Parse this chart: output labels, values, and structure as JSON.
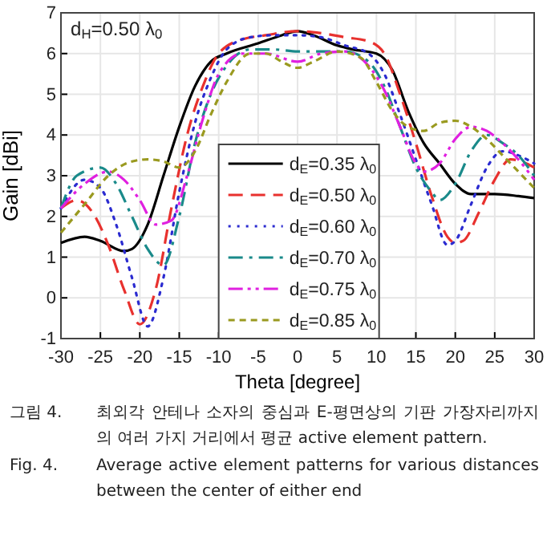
{
  "chart_data": {
    "type": "line",
    "xlabel": "Theta [degree]",
    "ylabel": "Gain [dBi]",
    "xlim": [
      -30,
      30
    ],
    "xticks": [
      -30,
      -25,
      -20,
      -15,
      -10,
      -5,
      0,
      5,
      10,
      15,
      20,
      25,
      30
    ],
    "ylim": [
      -1,
      7
    ],
    "yticks": [
      -1,
      0,
      1,
      2,
      3,
      4,
      5,
      6,
      7
    ],
    "grid": true,
    "legend": "bottom",
    "annotations": [
      {
        "text": "d$_{H}$=0.50 λ$_{0}$"
      },
      "그림 4. 최외각 안테나 소자의 중심과 E-평면상의 기판 가장자리까지의 여러 가지 거리에서 평균 active element pattern.",
      "Fig. 4. Average active element patterns for various distances between the center of either end"
    ],
    "series": [
      {
        "name": "d$_{E}$=0.35 λ$_{0}$",
        "color": "#000000",
        "line_style": "solid",
        "x": [
          -30,
          -27,
          -25,
          -22,
          -21,
          -19,
          -17,
          -15,
          -13,
          -11,
          -9,
          -5,
          -2,
          0,
          2,
          5,
          7,
          10,
          12,
          14,
          16,
          18,
          20,
          22,
          25,
          28,
          30
        ],
        "values": [
          1.35,
          1.5,
          1.4,
          1.15,
          1.2,
          1.8,
          3.0,
          4.2,
          5.2,
          5.8,
          6.0,
          6.25,
          6.45,
          6.55,
          6.45,
          6.2,
          6.1,
          6.0,
          5.6,
          4.6,
          3.8,
          3.3,
          2.8,
          2.55,
          2.55,
          2.5,
          2.45
        ]
      },
      {
        "name": "d$_{E}$=0.50 λ$_{0}$",
        "color": "#e8312e",
        "line_style": "dashed",
        "x": [
          -30,
          -28,
          -26,
          -24,
          -22,
          -20,
          -18,
          -16,
          -14,
          -12,
          -10,
          -7,
          -4,
          0,
          3,
          6,
          9,
          11,
          13,
          15,
          17,
          19,
          20,
          21,
          23,
          25,
          27,
          29,
          30
        ],
        "values": [
          2.2,
          2.4,
          2.1,
          1.3,
          0.2,
          -0.65,
          0.2,
          2.2,
          4.0,
          5.2,
          6.0,
          6.35,
          6.45,
          6.55,
          6.5,
          6.4,
          6.3,
          6.0,
          5.0,
          3.8,
          2.5,
          1.5,
          1.35,
          1.4,
          2.1,
          2.9,
          3.4,
          3.3,
          3.2
        ]
      },
      {
        "name": "d$_{E}$=0.60 λ$_{0}$",
        "color": "#2b2bd0",
        "line_style": "dotted",
        "x": [
          -30,
          -27,
          -25,
          -23,
          -21,
          -19,
          -17,
          -15,
          -13,
          -11,
          -9,
          -6,
          -3,
          0,
          3,
          6,
          9,
          11,
          13,
          15,
          17,
          19,
          20,
          22,
          24,
          26,
          28,
          30
        ],
        "values": [
          2.2,
          2.9,
          2.7,
          1.8,
          0.5,
          -0.7,
          0.5,
          2.6,
          4.3,
          5.4,
          6.1,
          6.4,
          6.45,
          6.45,
          6.4,
          6.2,
          6.0,
          5.5,
          4.5,
          3.4,
          2.3,
          1.3,
          1.4,
          2.3,
          3.2,
          3.6,
          3.5,
          3.3
        ]
      },
      {
        "name": "d$_{E}$=0.70 λ$_{0}$",
        "color": "#1a8a8a",
        "line_style": "dashdot",
        "x": [
          -30,
          -28,
          -25,
          -23,
          -21,
          -19,
          -17,
          -15,
          -13,
          -11,
          -9,
          -6,
          -3,
          0,
          3,
          6,
          9,
          11,
          13,
          15,
          17,
          18,
          20,
          22,
          24,
          26,
          28,
          30
        ],
        "values": [
          2.2,
          3.0,
          3.2,
          2.8,
          2.0,
          1.2,
          0.8,
          2.0,
          3.8,
          5.0,
          5.7,
          6.1,
          6.1,
          6.05,
          6.05,
          6.05,
          5.8,
          5.2,
          4.2,
          3.2,
          2.6,
          2.4,
          2.8,
          3.6,
          4.0,
          3.8,
          3.5,
          3.0
        ]
      },
      {
        "name": "d$_{E}$=0.75 λ$_{0}$",
        "color": "#e020e0",
        "line_style": "dashdotdot",
        "x": [
          -30,
          -27,
          -24,
          -22,
          -20,
          -18,
          -16,
          -14,
          -12,
          -10,
          -7,
          -4,
          0,
          3,
          6,
          9,
          11,
          13,
          15,
          16,
          18,
          20,
          22,
          24,
          26,
          28,
          30
        ],
        "values": [
          2.2,
          2.8,
          3.1,
          2.9,
          2.4,
          1.8,
          1.9,
          3.0,
          4.4,
          5.5,
          6.0,
          6.0,
          5.8,
          6.0,
          6.05,
          5.7,
          5.1,
          4.2,
          3.3,
          3.1,
          3.3,
          3.9,
          4.2,
          4.1,
          3.8,
          3.4,
          2.9
        ]
      },
      {
        "name": "d$_{E}$=0.85 λ$_{0}$",
        "color": "#9a9a20",
        "line_style": "shortdash",
        "x": [
          -30,
          -27,
          -24,
          -21,
          -19,
          -17,
          -15,
          -13,
          -11,
          -9,
          -6,
          -4,
          -2,
          0,
          2,
          5,
          8,
          10,
          12,
          14,
          16,
          18,
          20,
          22,
          24,
          26,
          28,
          30
        ],
        "values": [
          1.6,
          2.3,
          3.0,
          3.35,
          3.4,
          3.35,
          3.2,
          3.6,
          4.5,
          5.3,
          6.0,
          6.0,
          5.8,
          5.65,
          5.8,
          6.05,
          5.9,
          5.3,
          4.6,
          4.2,
          4.1,
          4.3,
          4.35,
          4.2,
          3.9,
          3.5,
          3.1,
          2.7
        ]
      }
    ]
  }
}
